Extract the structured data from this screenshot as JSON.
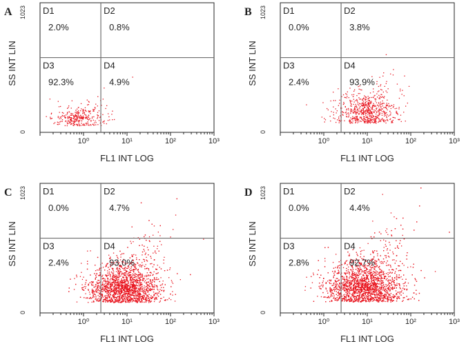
{
  "colors": {
    "dots": "#e8121c",
    "axis": "#222222",
    "quadrant_lines": "#6e6e6e",
    "label": "#222222"
  },
  "chart_data": [
    {
      "type": "scatter",
      "panel_label": "A",
      "xlabel": "FL1 INT LOG",
      "ylabel": "SS INT LIN",
      "x_scale": "log",
      "xlim_log10": [
        -1,
        3
      ],
      "ylim": [
        0,
        1023
      ],
      "x_tick_labels": [
        "10⁰",
        "10¹",
        "10²",
        "10³"
      ],
      "y_tick_labels": [
        "0",
        "1023"
      ],
      "quadrant_gate": {
        "x": 2.5,
        "y": 590
      },
      "quadrants": [
        {
          "name": "D1",
          "percent": "2.0%"
        },
        {
          "name": "D2",
          "percent": "0.8%"
        },
        {
          "name": "D3",
          "percent": "92.3%"
        },
        {
          "name": "D4",
          "percent": "4.9%"
        }
      ],
      "cloud": {
        "count": 320,
        "center_log10": -0.1,
        "spread_log10": 0.32,
        "y_mean": 110,
        "y_spread": 90
      }
    },
    {
      "type": "scatter",
      "panel_label": "B",
      "xlabel": "FL1 INT LOG",
      "ylabel": "SS INT LIN",
      "x_scale": "log",
      "xlim_log10": [
        -1,
        3
      ],
      "ylim": [
        0,
        1023
      ],
      "x_tick_labels": [
        "10⁰",
        "10¹",
        "10²",
        "10³"
      ],
      "y_tick_labels": [
        "0",
        "1023"
      ],
      "quadrant_gate": {
        "x": 2.5,
        "y": 590
      },
      "quadrants": [
        {
          "name": "D1",
          "percent": "0.0%"
        },
        {
          "name": "D2",
          "percent": "3.8%"
        },
        {
          "name": "D3",
          "percent": "2.4%"
        },
        {
          "name": "D4",
          "percent": "93.9%"
        }
      ],
      "cloud": {
        "count": 700,
        "center_log10": 1.0,
        "spread_log10": 0.35,
        "y_mean": 150,
        "y_spread": 140
      }
    },
    {
      "type": "scatter",
      "panel_label": "C",
      "xlabel": "FL1 INT LOG",
      "ylabel": "SS INT LIN",
      "x_scale": "log",
      "xlim_log10": [
        -1,
        3
      ],
      "ylim": [
        0,
        1023
      ],
      "x_tick_labels": [
        "10⁰",
        "10¹",
        "10²",
        "10³"
      ],
      "y_tick_labels": [
        "0",
        "1023"
      ],
      "quadrant_gate": {
        "x": 2.5,
        "y": 590
      },
      "quadrants": [
        {
          "name": "D1",
          "percent": "0.0%"
        },
        {
          "name": "D2",
          "percent": "4.7%"
        },
        {
          "name": "D3",
          "percent": "2.4%"
        },
        {
          "name": "D4",
          "percent": "93.0%"
        }
      ],
      "cloud": {
        "count": 2600,
        "center_log10": 0.95,
        "spread_log10": 0.42,
        "y_mean": 170,
        "y_spread": 190
      }
    },
    {
      "type": "scatter",
      "panel_label": "D",
      "xlabel": "FL1 INT LOG",
      "ylabel": "SS INT LIN",
      "x_scale": "log",
      "xlim_log10": [
        -1,
        3
      ],
      "ylim": [
        0,
        1023
      ],
      "x_tick_labels": [
        "10⁰",
        "10¹",
        "10²",
        "10³"
      ],
      "y_tick_labels": [
        "0",
        "1023"
      ],
      "quadrant_gate": {
        "x": 2.5,
        "y": 590
      },
      "quadrants": [
        {
          "name": "D1",
          "percent": "0.0%"
        },
        {
          "name": "D2",
          "percent": "4.4%"
        },
        {
          "name": "D3",
          "percent": "2.8%"
        },
        {
          "name": "D4",
          "percent": "92.7%"
        }
      ],
      "cloud": {
        "count": 2900,
        "center_log10": 0.95,
        "spread_log10": 0.45,
        "y_mean": 180,
        "y_spread": 200
      }
    }
  ]
}
